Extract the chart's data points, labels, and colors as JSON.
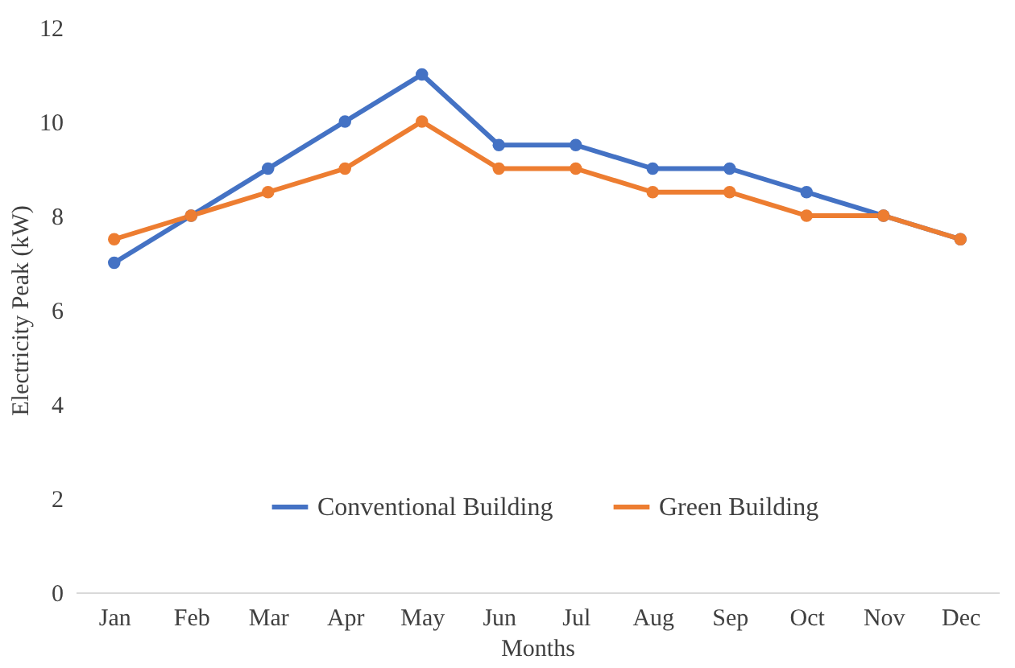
{
  "chart_data": {
    "type": "line",
    "xlabel": "Months",
    "ylabel": "Electricity Peak (kW)",
    "categories": [
      "Jan",
      "Feb",
      "Mar",
      "Apr",
      "May",
      "Jun",
      "Jul",
      "Aug",
      "Sep",
      "Oct",
      "Nov",
      "Dec"
    ],
    "series": [
      {
        "name": "Conventional Building",
        "color": "#4472c4",
        "values": [
          7,
          8,
          9,
          10,
          11,
          9.5,
          9.5,
          9,
          9,
          8.5,
          8,
          7.5
        ]
      },
      {
        "name": "Green Building",
        "color": "#ed7d31",
        "values": [
          7.5,
          8,
          8.5,
          9,
          10,
          9,
          9,
          8.5,
          8.5,
          8,
          8,
          7.5
        ]
      }
    ],
    "ylim": [
      0,
      12
    ],
    "yticks": [
      0,
      2,
      4,
      6,
      8,
      10,
      12
    ],
    "grid": false,
    "legend": "bottom",
    "marker": "circle",
    "line_style": "solid"
  }
}
